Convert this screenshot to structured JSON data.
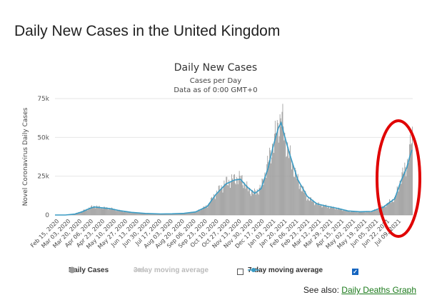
{
  "page": {
    "heading": "Daily New Cases in the United Kingdom",
    "see_also_prefix": "See also:",
    "see_also_link": "Daily Deaths Graph"
  },
  "legend": {
    "daily_cases": "Daily Cases",
    "ma3": "3-day moving average",
    "ma7": "7-day moving average",
    "ma3_checked": false,
    "ma7_checked": true
  },
  "colors": {
    "bars": "#999999",
    "ma7": "#3a9bc4",
    "ma3": "#cccccc",
    "highlight_circle": "#e00000"
  },
  "chart_data": {
    "type": "bar",
    "title": "Daily New Cases",
    "subtitle": "Cases per Day",
    "subtitle2": "Data as of 0:00 GMT+0",
    "ylabel": "Novel Coronavirus Daily Cases",
    "xlabel": "",
    "ylim": [
      0,
      75000
    ],
    "yticks": [
      0,
      25000,
      50000,
      75000
    ],
    "ytick_labels": [
      "0",
      "25k",
      "50k",
      "75k"
    ],
    "grid": true,
    "legend_position": "bottom",
    "x_tick_labels": [
      "Feb 15, 2020",
      "Mar 03, 2020",
      "Mar 20, 2020",
      "Apr 06, 2020",
      "Apr 23, 2020",
      "May 10, 2020",
      "May 27, 2020",
      "Jun 13, 2020",
      "Jun 30, 2020",
      "Jul 17, 2020",
      "Aug 03, 2020",
      "Aug 20, 2020",
      "Sep 06, 2020",
      "Sep 23, 2020",
      "Oct 10, 2020",
      "Oct 27, 2020",
      "Nov 13, 2020",
      "Nov 30, 2020",
      "Dec 17, 2020",
      "Jan 03, 2021",
      "Jan 20, 2021",
      "Feb 06, 2021",
      "Feb 23, 2021",
      "Mar 12, 2021",
      "Mar 29, 2021",
      "Apr 15, 2021",
      "May 02, 2021",
      "May 19, 2021",
      "Jun 05, 2021",
      "Jun 22, 2021",
      "Jul 09, 2021"
    ],
    "series": [
      {
        "name": "Daily Cases",
        "kind": "bar",
        "anchors": [
          [
            "2020-02-15",
            0
          ],
          [
            "2020-03-01",
            40
          ],
          [
            "2020-03-15",
            900
          ],
          [
            "2020-03-25",
            2500
          ],
          [
            "2020-04-05",
            4500
          ],
          [
            "2020-04-10",
            5700
          ],
          [
            "2020-04-22",
            4800
          ],
          [
            "2020-05-05",
            4200
          ],
          [
            "2020-05-20",
            2600
          ],
          [
            "2020-06-05",
            1600
          ],
          [
            "2020-06-25",
            1000
          ],
          [
            "2020-07-17",
            700
          ],
          [
            "2020-08-03",
            800
          ],
          [
            "2020-08-20",
            1100
          ],
          [
            "2020-09-06",
            2100
          ],
          [
            "2020-09-23",
            6000
          ],
          [
            "2020-10-05",
            14000
          ],
          [
            "2020-10-20",
            21000
          ],
          [
            "2020-11-01",
            23000
          ],
          [
            "2020-11-05",
            24000
          ],
          [
            "2020-11-12",
            23000
          ],
          [
            "2020-11-20",
            17000
          ],
          [
            "2020-11-30",
            14000
          ],
          [
            "2020-12-10",
            18000
          ],
          [
            "2020-12-20",
            34000
          ],
          [
            "2020-12-28",
            47000
          ],
          [
            "2021-01-04",
            58000
          ],
          [
            "2021-01-08",
            64000
          ],
          [
            "2021-01-13",
            50000
          ],
          [
            "2021-01-20",
            38000
          ],
          [
            "2021-02-01",
            22000
          ],
          [
            "2021-02-15",
            11000
          ],
          [
            "2021-03-01",
            7000
          ],
          [
            "2021-03-15",
            5500
          ],
          [
            "2021-04-01",
            4000
          ],
          [
            "2021-04-15",
            2500
          ],
          [
            "2021-05-02",
            2000
          ],
          [
            "2021-05-19",
            2300
          ],
          [
            "2021-06-05",
            5300
          ],
          [
            "2021-06-22",
            11000
          ],
          [
            "2021-07-01",
            24000
          ],
          [
            "2021-07-09",
            32000
          ],
          [
            "2021-07-14",
            43000
          ],
          [
            "2021-07-17",
            51000
          ]
        ]
      },
      {
        "name": "7-day moving average",
        "kind": "line",
        "anchors": [
          [
            "2020-02-15",
            0
          ],
          [
            "2020-03-01",
            20
          ],
          [
            "2020-03-15",
            600
          ],
          [
            "2020-03-25",
            2000
          ],
          [
            "2020-04-05",
            4200
          ],
          [
            "2020-04-12",
            5200
          ],
          [
            "2020-04-22",
            4700
          ],
          [
            "2020-05-05",
            4100
          ],
          [
            "2020-05-20",
            2700
          ],
          [
            "2020-06-05",
            1700
          ],
          [
            "2020-06-25",
            1000
          ],
          [
            "2020-07-17",
            700
          ],
          [
            "2020-08-03",
            800
          ],
          [
            "2020-08-20",
            1050
          ],
          [
            "2020-09-06",
            2000
          ],
          [
            "2020-09-23",
            5500
          ],
          [
            "2020-10-05",
            13000
          ],
          [
            "2020-10-20",
            20000
          ],
          [
            "2020-11-01",
            22500
          ],
          [
            "2020-11-10",
            23000
          ],
          [
            "2020-11-20",
            18000
          ],
          [
            "2020-12-01",
            14000
          ],
          [
            "2020-12-10",
            17000
          ],
          [
            "2020-12-20",
            30000
          ],
          [
            "2020-12-28",
            45000
          ],
          [
            "2021-01-04",
            56000
          ],
          [
            "2021-01-08",
            59500
          ],
          [
            "2021-01-13",
            51000
          ],
          [
            "2021-01-20",
            40000
          ],
          [
            "2021-02-01",
            23000
          ],
          [
            "2021-02-15",
            12000
          ],
          [
            "2021-03-01",
            7200
          ],
          [
            "2021-03-15",
            5700
          ],
          [
            "2021-04-01",
            4200
          ],
          [
            "2021-04-15",
            2600
          ],
          [
            "2021-05-02",
            2100
          ],
          [
            "2021-05-19",
            2300
          ],
          [
            "2021-06-05",
            5000
          ],
          [
            "2021-06-22",
            10500
          ],
          [
            "2021-07-01",
            22000
          ],
          [
            "2021-07-09",
            30000
          ],
          [
            "2021-07-14",
            38000
          ],
          [
            "2021-07-17",
            42000
          ]
        ]
      }
    ]
  }
}
